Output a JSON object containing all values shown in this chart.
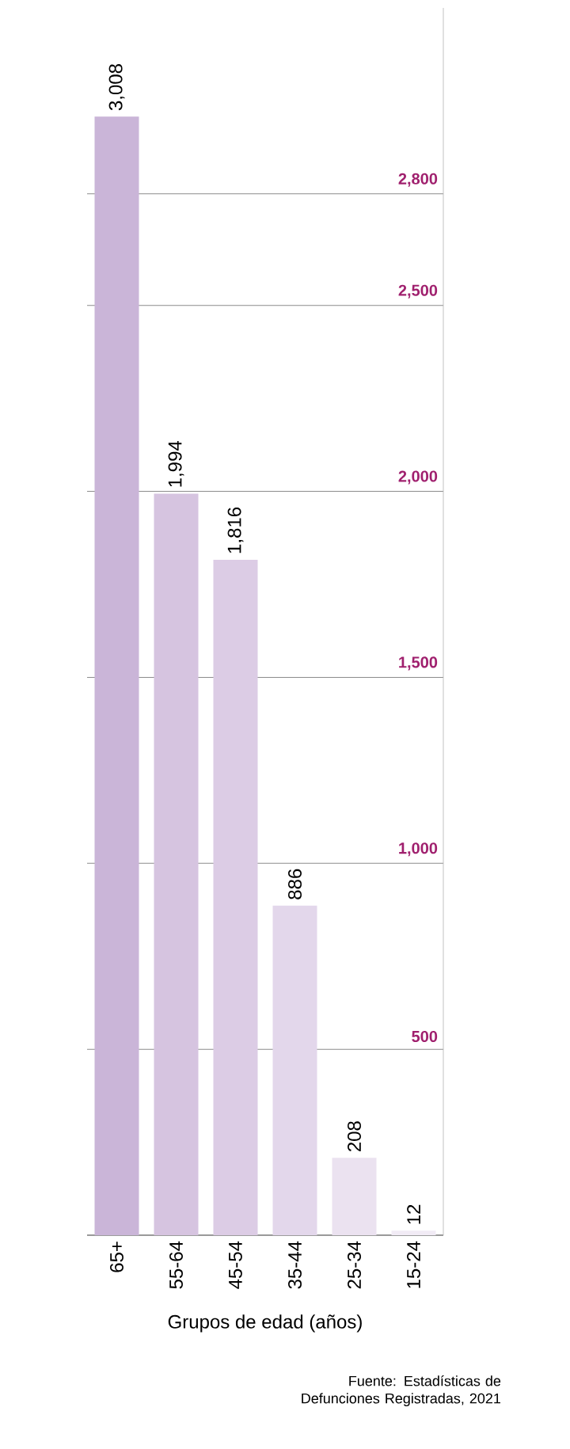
{
  "chart_data": {
    "type": "bar",
    "categories": [
      "65+",
      "55-64",
      "45-54",
      "35-44",
      "25-34",
      "15-24"
    ],
    "values": [
      3008,
      1994,
      1816,
      886,
      208,
      12
    ],
    "value_labels": [
      "3,008",
      "1,994",
      "1,816",
      "886",
      "208",
      "12"
    ],
    "colors": [
      "#cab5d8",
      "#d6c4e0",
      "#dccce5",
      "#e3d7eb",
      "#ebe2f0",
      "#f1ebf5"
    ],
    "ylim": [
      0,
      3300
    ],
    "yticks": [
      {
        "value": 500,
        "label": "500"
      },
      {
        "value": 1000,
        "label": "1,000"
      },
      {
        "value": 1500,
        "label": "1,500"
      },
      {
        "value": 2000,
        "label": "2,000"
      },
      {
        "value": 2500,
        "label": "2,500"
      },
      {
        "value": 2800,
        "label": "2,800"
      }
    ],
    "grid": "y",
    "xlabel": "Grupos de edad (años)",
    "annotations": [
      "Fuente: Estadísticas de Defunciones Registradas, 2021"
    ]
  }
}
